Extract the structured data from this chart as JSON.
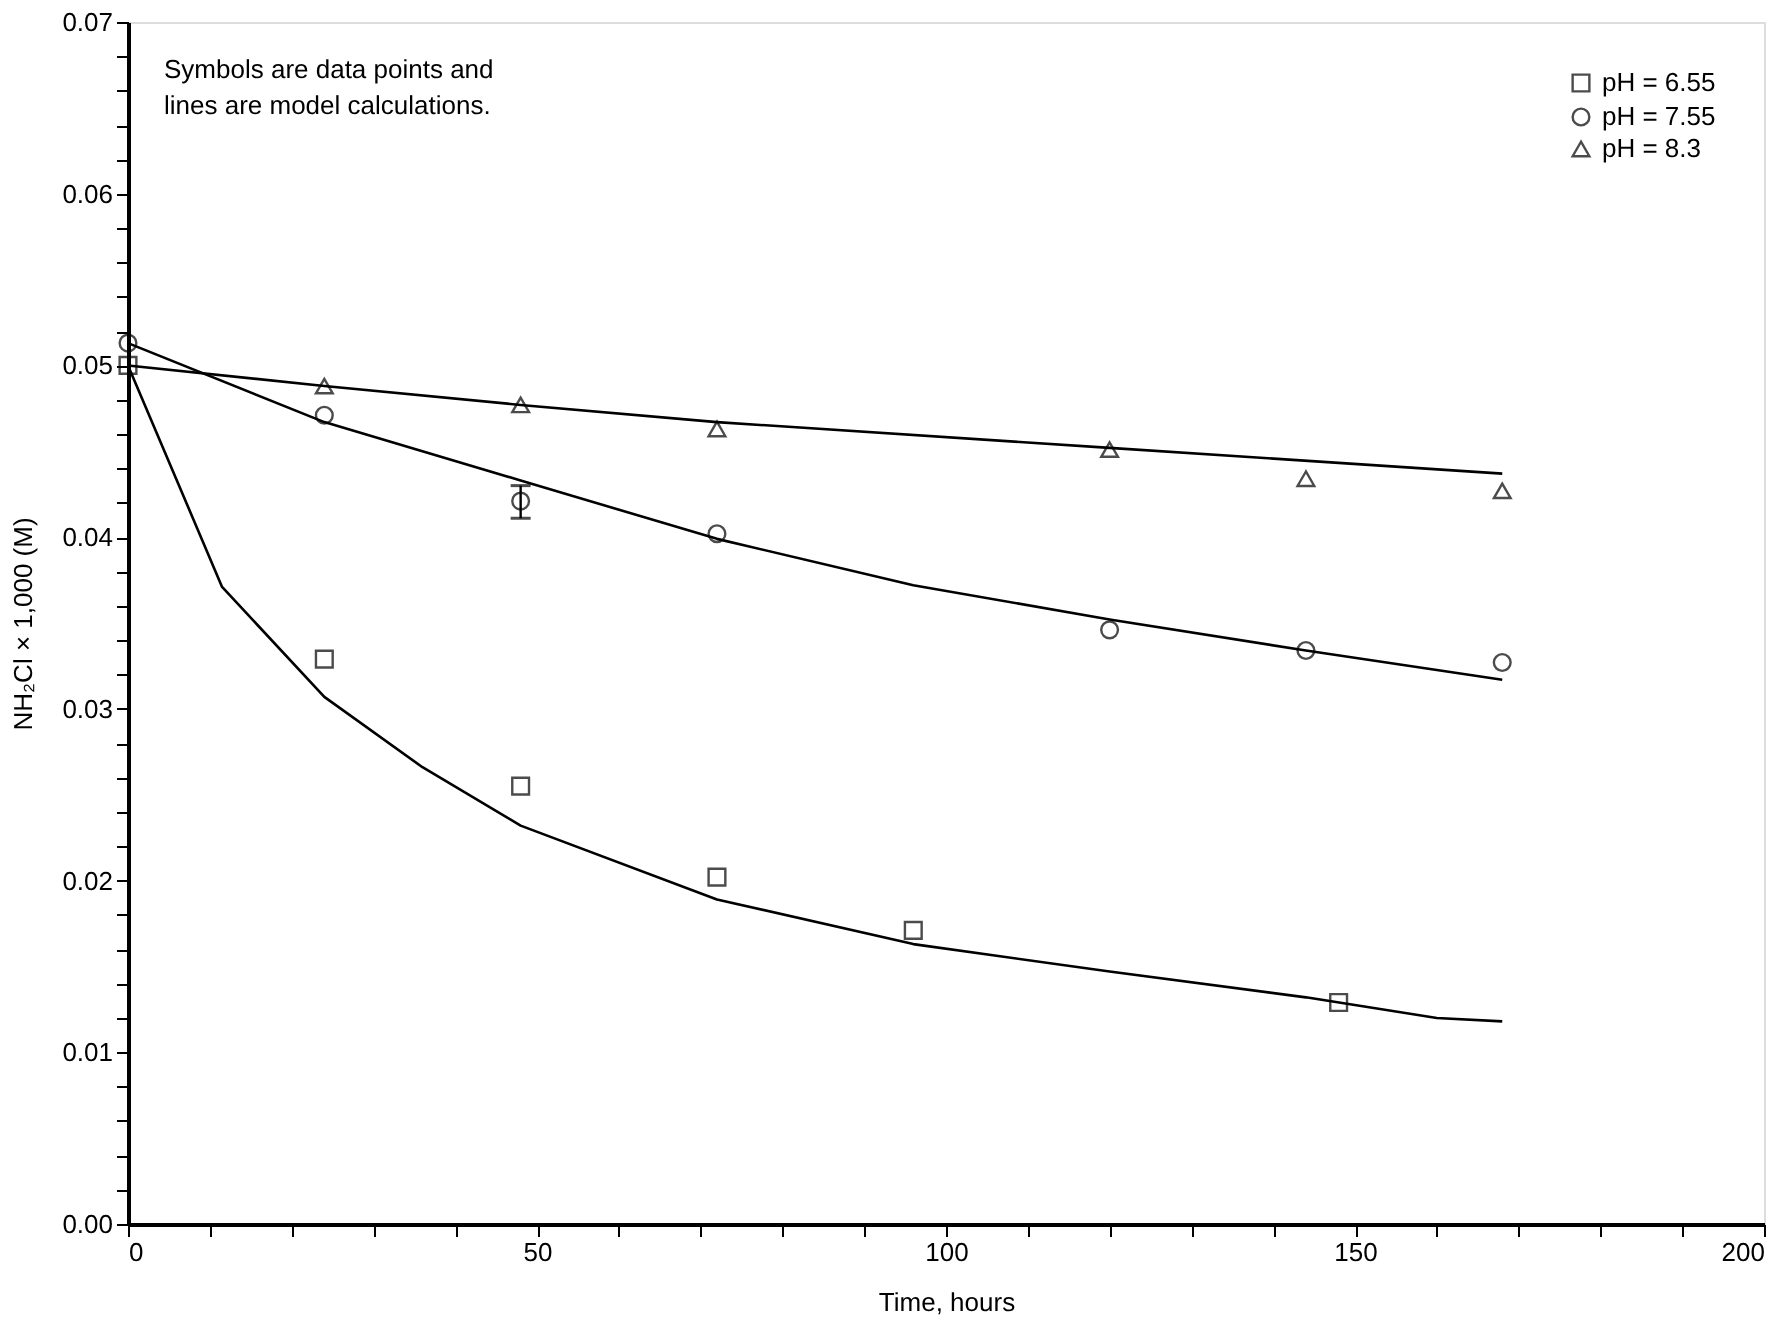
{
  "chart_data": {
    "type": "scatter",
    "xlabel": "Time, hours",
    "ylabel": "NH₂Cl × 1,000 (M)",
    "annotations": [
      "Symbols are data points and lines are model calculations."
    ],
    "xlim": [
      0,
      200
    ],
    "ylim": [
      0,
      0.07
    ],
    "xticks": [
      0,
      {
        "value": 10,
        "label": null
      },
      {
        "value": 20,
        "label": null
      },
      {
        "value": 30,
        "label": null
      },
      {
        "value": 40,
        "label": null
      },
      50,
      {
        "value": 60,
        "label": null
      },
      {
        "value": 70,
        "label": null
      },
      {
        "value": 80,
        "label": null
      },
      {
        "value": 90,
        "label": null
      },
      100,
      {
        "value": 110,
        "label": null
      },
      {
        "value": 120,
        "label": null
      },
      {
        "value": 130,
        "label": null
      },
      {
        "value": 140,
        "label": null
      },
      150,
      {
        "value": 160,
        "label": null
      },
      {
        "value": 170,
        "label": null
      },
      {
        "value": 180,
        "label": null
      },
      {
        "value": 190,
        "label": null
      },
      200
    ],
    "yticks": [
      {
        "value": 0,
        "label": "0.00"
      },
      {
        "value": 0.002,
        "label": null
      },
      {
        "value": 0.004,
        "label": null
      },
      {
        "value": 0.006,
        "label": null
      },
      {
        "value": 0.008,
        "label": null
      },
      0.01,
      {
        "value": 0.012,
        "label": null
      },
      {
        "value": 0.014,
        "label": null
      },
      {
        "value": 0.016,
        "label": null
      },
      {
        "value": 0.018,
        "label": null
      },
      0.02,
      {
        "value": 0.022,
        "label": null
      },
      {
        "value": 0.024,
        "label": null
      },
      {
        "value": 0.026,
        "label": null
      },
      {
        "value": 0.028,
        "label": null
      },
      0.03,
      {
        "value": 0.032,
        "label": null
      },
      {
        "value": 0.034,
        "label": null
      },
      {
        "value": 0.036,
        "label": null
      },
      {
        "value": 0.038,
        "label": null
      },
      0.04,
      {
        "value": 0.042,
        "label": null
      },
      {
        "value": 0.044,
        "label": null
      },
      {
        "value": 0.046,
        "label": null
      },
      {
        "value": 0.048,
        "label": null
      },
      0.05,
      {
        "value": 0.052,
        "label": null
      },
      {
        "value": 0.054,
        "label": null
      },
      {
        "value": 0.056,
        "label": null
      },
      {
        "value": 0.058,
        "label": null
      },
      0.06,
      {
        "value": 0.062,
        "label": null
      },
      {
        "value": 0.064,
        "label": null
      },
      {
        "value": 0.066,
        "label": null
      },
      {
        "value": 0.068,
        "label": null
      },
      0.07
    ],
    "grid": false,
    "legend": "top right",
    "series": [
      {
        "name": "pH = 6.55",
        "marker": "square",
        "color": "#000000",
        "x": [
          0,
          24,
          48,
          72,
          96,
          148
        ],
        "values": [
          0.05,
          0.0329,
          0.0255,
          0.0202,
          0.0171,
          0.0129
        ]
      },
      {
        "name": "pH = 7.55",
        "marker": "circle",
        "color": "#000000",
        "x": [
          0,
          24,
          48,
          72,
          120,
          144,
          168
        ],
        "values": [
          0.0513,
          0.0471,
          0.0421,
          0.0402,
          0.0346,
          0.0334,
          0.0327
        ],
        "errors": [
          null,
          null,
          [
            0.0411,
            0.043
          ],
          null,
          null,
          null,
          null
        ]
      },
      {
        "name": "pH = 8.3",
        "marker": "triangle",
        "color": "#000000",
        "x": [
          24,
          48,
          72,
          120,
          144,
          168
        ],
        "values": [
          0.0488,
          0.0477,
          0.0463,
          0.0451,
          0.0434,
          0.0427
        ]
      },
      {
        "type": "line",
        "marker": "none",
        "line_style": "solid",
        "color": "#000000",
        "x": [
          0,
          11.5,
          24,
          36,
          48,
          72,
          96,
          120,
          144,
          160,
          168
        ],
        "values": [
          0.05,
          0.0371,
          0.0307,
          0.0266,
          0.0232,
          0.0189,
          0.0163,
          0.0147,
          0.0132,
          0.012,
          0.0118
        ]
      },
      {
        "type": "line",
        "marker": "none",
        "line_style": "solid",
        "color": "#000000",
        "x": [
          0,
          24,
          48,
          72,
          96,
          120,
          144,
          168
        ],
        "values": [
          0.0513,
          0.0467,
          0.0433,
          0.0399,
          0.0372,
          0.0352,
          0.0334,
          0.0317
        ]
      },
      {
        "type": "line",
        "marker": "none",
        "line_style": "solid",
        "color": "#000000",
        "x": [
          0,
          24,
          48,
          72,
          120,
          168
        ],
        "values": [
          0.05,
          0.0488,
          0.0477,
          0.0467,
          0.0452,
          0.0437
        ]
      }
    ]
  }
}
